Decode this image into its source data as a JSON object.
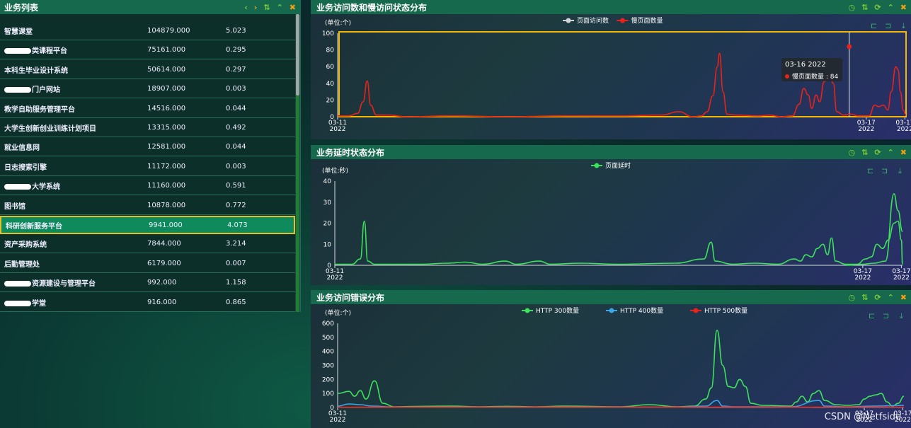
{
  "list_panel": {
    "title": "业务列表",
    "rows": [
      {
        "name": "智慧课堂",
        "v1": "104879.000",
        "v2": "5.023",
        "redacted": false
      },
      {
        "name": "类课程平台",
        "v1": "75161.000",
        "v2": "0.295",
        "redacted": true
      },
      {
        "name": "本科生毕业设计系统",
        "v1": "50614.000",
        "v2": "0.297",
        "redacted": false
      },
      {
        "name": "门户网站",
        "v1": "18907.000",
        "v2": "0.003",
        "redacted": true
      },
      {
        "name": "教学自助服务管理平台",
        "v1": "14516.000",
        "v2": "0.044",
        "redacted": false
      },
      {
        "name": "大学生创新创业训练计划项目",
        "v1": "13315.000",
        "v2": "0.492",
        "redacted": false
      },
      {
        "name": "就业信息网",
        "v1": "12581.000",
        "v2": "0.044",
        "redacted": false
      },
      {
        "name": "日志搜索引擎",
        "v1": "11172.000",
        "v2": "0.003",
        "redacted": false
      },
      {
        "name": "大学系统",
        "v1": "11160.000",
        "v2": "0.591",
        "redacted": true
      },
      {
        "name": "图书馆",
        "v1": "10878.000",
        "v2": "0.772",
        "redacted": false
      },
      {
        "name": "科研创新服务平台",
        "v1": "9941.000",
        "v2": "4.073",
        "redacted": false,
        "selected": true
      },
      {
        "name": "资产采购系统",
        "v1": "7844.000",
        "v2": "3.214",
        "redacted": false
      },
      {
        "name": "后勤管理处",
        "v1": "6179.000",
        "v2": "0.007",
        "redacted": false
      },
      {
        "name": "资源建设与管理平台",
        "v1": "992.000",
        "v2": "1.158",
        "redacted": true
      },
      {
        "name": "学堂",
        "v1": "916.000",
        "v2": "0.865",
        "redacted": true
      }
    ]
  },
  "tooltip": {
    "date": "03-16 2022",
    "label": "慢页面数量 : 84"
  },
  "watermark": "CSDN @Netfside",
  "colors": {
    "green": "#3de05a",
    "red": "#e8231a",
    "blue": "#3aa7e6",
    "grey": "#cfd3d6",
    "highlight": "#f2b705"
  },
  "chart_data": [
    {
      "type": "line",
      "title": "业务访问数和慢访问状态分布",
      "ylabel": "(单位:个)",
      "ylim": [
        0,
        100
      ],
      "yticks": [
        0,
        20,
        40,
        60,
        80,
        100
      ],
      "xticks": [
        {
          "pos": 0,
          "label": "03-11",
          "sub": "2022"
        },
        {
          "pos": 0.93,
          "label": "03-17",
          "sub": "2022"
        },
        {
          "pos": 0.998,
          "label": "03-17",
          "sub": "2022"
        }
      ],
      "legend": [
        {
          "name": "页面访问数",
          "color": "#cfd3d6"
        },
        {
          "name": "慢页面数量",
          "color": "#e8231a"
        }
      ],
      "highlight_box": true,
      "cursor_x": 0.9,
      "marker": {
        "x": 0.9,
        "y": 84
      },
      "series": [
        {
          "name": "慢页面数量",
          "color": "#e8231a",
          "points": [
            [
              0,
              1
            ],
            [
              0.02,
              1
            ],
            [
              0.035,
              4
            ],
            [
              0.045,
              18
            ],
            [
              0.052,
              43
            ],
            [
              0.058,
              14
            ],
            [
              0.068,
              2
            ],
            [
              0.09,
              2
            ],
            [
              0.12,
              0
            ],
            [
              0.2,
              1
            ],
            [
              0.3,
              0
            ],
            [
              0.4,
              1
            ],
            [
              0.5,
              1
            ],
            [
              0.57,
              2
            ],
            [
              0.6,
              6
            ],
            [
              0.625,
              0
            ],
            [
              0.64,
              1
            ],
            [
              0.65,
              6
            ],
            [
              0.66,
              25
            ],
            [
              0.668,
              60
            ],
            [
              0.672,
              76
            ],
            [
              0.678,
              30
            ],
            [
              0.685,
              3
            ],
            [
              0.7,
              2
            ],
            [
              0.74,
              1
            ],
            [
              0.76,
              2
            ],
            [
              0.78,
              0
            ],
            [
              0.8,
              1
            ],
            [
              0.812,
              15
            ],
            [
              0.82,
              34
            ],
            [
              0.828,
              26
            ],
            [
              0.834,
              10
            ],
            [
              0.842,
              26
            ],
            [
              0.848,
              18
            ],
            [
              0.856,
              42
            ],
            [
              0.866,
              50
            ],
            [
              0.872,
              40
            ],
            [
              0.878,
              6
            ],
            [
              0.89,
              2
            ],
            [
              0.905,
              3
            ],
            [
              0.915,
              1
            ],
            [
              0.935,
              1
            ],
            [
              0.945,
              14
            ],
            [
              0.952,
              12
            ],
            [
              0.96,
              14
            ],
            [
              0.968,
              8
            ],
            [
              0.974,
              30
            ],
            [
              0.982,
              60
            ],
            [
              0.986,
              56
            ],
            [
              0.99,
              30
            ],
            [
              0.995,
              8
            ],
            [
              1.0,
              2
            ],
            [
              1.0,
              2
            ]
          ]
        }
      ]
    },
    {
      "type": "line",
      "title": "业务延时状态分布",
      "ylabel": "(单位:秒)",
      "ylim": [
        0,
        40
      ],
      "yticks": [
        0,
        10,
        20,
        30,
        40
      ],
      "xticks": [
        {
          "pos": 0,
          "label": "03-11",
          "sub": "2022"
        },
        {
          "pos": 0.93,
          "label": "03-17",
          "sub": "2022"
        },
        {
          "pos": 0.998,
          "label": "03-17",
          "sub": "2022"
        }
      ],
      "legend": [
        {
          "name": "页面延时",
          "color": "#3de05a"
        }
      ],
      "series": [
        {
          "name": "页面延时",
          "color": "#3de05a",
          "points": [
            [
              0,
              0.5
            ],
            [
              0.03,
              0.5
            ],
            [
              0.045,
              3
            ],
            [
              0.052,
              21
            ],
            [
              0.058,
              2
            ],
            [
              0.07,
              0.5
            ],
            [
              0.15,
              0.5
            ],
            [
              0.2,
              1
            ],
            [
              0.23,
              1.5
            ],
            [
              0.26,
              0.5
            ],
            [
              0.3,
              2
            ],
            [
              0.32,
              0.5
            ],
            [
              0.36,
              2
            ],
            [
              0.38,
              0.5
            ],
            [
              0.43,
              1
            ],
            [
              0.5,
              0.5
            ],
            [
              0.6,
              1
            ],
            [
              0.65,
              3
            ],
            [
              0.663,
              11
            ],
            [
              0.67,
              2
            ],
            [
              0.7,
              0.5
            ],
            [
              0.74,
              1
            ],
            [
              0.78,
              0.5
            ],
            [
              0.81,
              3
            ],
            [
              0.82,
              2
            ],
            [
              0.83,
              5
            ],
            [
              0.84,
              4
            ],
            [
              0.85,
              8
            ],
            [
              0.86,
              10
            ],
            [
              0.868,
              5
            ],
            [
              0.875,
              13
            ],
            [
              0.882,
              2
            ],
            [
              0.9,
              0.5
            ],
            [
              0.92,
              0.5
            ],
            [
              0.935,
              3
            ],
            [
              0.945,
              4
            ],
            [
              0.955,
              10
            ],
            [
              0.965,
              8
            ],
            [
              0.975,
              12
            ],
            [
              0.985,
              20
            ],
            [
              0.992,
              21
            ],
            [
              0.998,
              12
            ],
            [
              1.0,
              0.5
            ],
            [
              1.0,
              0.5
            ]
          ]
        },
        {
          "name": "页面延时-tail",
          "color": "#3de05a",
          "points": [
            [
              0.9,
              0
            ],
            [
              0.93,
              0.5
            ],
            [
              0.95,
              1
            ],
            [
              0.97,
              2
            ],
            [
              0.985,
              34
            ],
            [
              0.992,
              26
            ],
            [
              1.0,
              16
            ]
          ]
        }
      ]
    },
    {
      "type": "line",
      "title": "业务访问错误分布",
      "ylabel": "(单位:个)",
      "ylim": [
        0,
        600
      ],
      "yticks": [
        0,
        100,
        200,
        300,
        400,
        500,
        600
      ],
      "xticks": [
        {
          "pos": 0,
          "label": "03-11",
          "sub": "2022"
        },
        {
          "pos": 0.93,
          "label": "03-17",
          "sub": "2022"
        },
        {
          "pos": 0.998,
          "label": "03-17",
          "sub": "2022"
        }
      ],
      "legend": [
        {
          "name": "HTTP 300数量",
          "color": "#3de05a"
        },
        {
          "name": "HTTP 400数量",
          "color": "#3aa7e6"
        },
        {
          "name": "HTTP 500数量",
          "color": "#e8231a"
        }
      ],
      "series": [
        {
          "name": "HTTP 300数量",
          "color": "#3de05a",
          "points": [
            [
              0,
              100
            ],
            [
              0.02,
              115
            ],
            [
              0.03,
              80
            ],
            [
              0.04,
              120
            ],
            [
              0.05,
              60
            ],
            [
              0.065,
              190
            ],
            [
              0.08,
              30
            ],
            [
              0.1,
              5
            ],
            [
              0.15,
              8
            ],
            [
              0.2,
              10
            ],
            [
              0.25,
              5
            ],
            [
              0.3,
              8
            ],
            [
              0.35,
              5
            ],
            [
              0.4,
              10
            ],
            [
              0.5,
              5
            ],
            [
              0.55,
              20
            ],
            [
              0.6,
              5
            ],
            [
              0.63,
              10
            ],
            [
              0.65,
              60
            ],
            [
              0.66,
              140
            ],
            [
              0.67,
              550
            ],
            [
              0.68,
              300
            ],
            [
              0.69,
              150
            ],
            [
              0.7,
              140
            ],
            [
              0.71,
              200
            ],
            [
              0.72,
              150
            ],
            [
              0.73,
              30
            ],
            [
              0.75,
              15
            ],
            [
              0.8,
              10
            ],
            [
              0.81,
              40
            ],
            [
              0.82,
              80
            ],
            [
              0.83,
              40
            ],
            [
              0.84,
              100
            ],
            [
              0.85,
              120
            ],
            [
              0.86,
              50
            ],
            [
              0.88,
              20
            ],
            [
              0.9,
              15
            ],
            [
              0.92,
              20
            ],
            [
              0.93,
              60
            ],
            [
              0.94,
              80
            ],
            [
              0.95,
              90
            ],
            [
              0.96,
              100
            ],
            [
              0.97,
              40
            ],
            [
              0.98,
              10
            ],
            [
              0.99,
              30
            ],
            [
              1.0,
              80
            ]
          ]
        },
        {
          "name": "HTTP 400数量",
          "color": "#3aa7e6",
          "points": [
            [
              0,
              10
            ],
            [
              0.02,
              25
            ],
            [
              0.04,
              20
            ],
            [
              0.06,
              10
            ],
            [
              0.1,
              3
            ],
            [
              0.3,
              3
            ],
            [
              0.5,
              3
            ],
            [
              0.6,
              3
            ],
            [
              0.65,
              10
            ],
            [
              0.67,
              50
            ],
            [
              0.68,
              10
            ],
            [
              0.7,
              5
            ],
            [
              0.8,
              5
            ],
            [
              0.85,
              50
            ],
            [
              0.86,
              10
            ],
            [
              0.9,
              5
            ],
            [
              0.95,
              10
            ],
            [
              1.0,
              15
            ]
          ]
        },
        {
          "name": "HTTP 500数量",
          "color": "#e8231a",
          "points": [
            [
              0,
              2
            ],
            [
              0.2,
              2
            ],
            [
              0.4,
              3
            ],
            [
              0.6,
              2
            ],
            [
              0.7,
              3
            ],
            [
              0.8,
              2
            ],
            [
              0.9,
              3
            ],
            [
              1.0,
              2
            ]
          ]
        }
      ]
    }
  ]
}
